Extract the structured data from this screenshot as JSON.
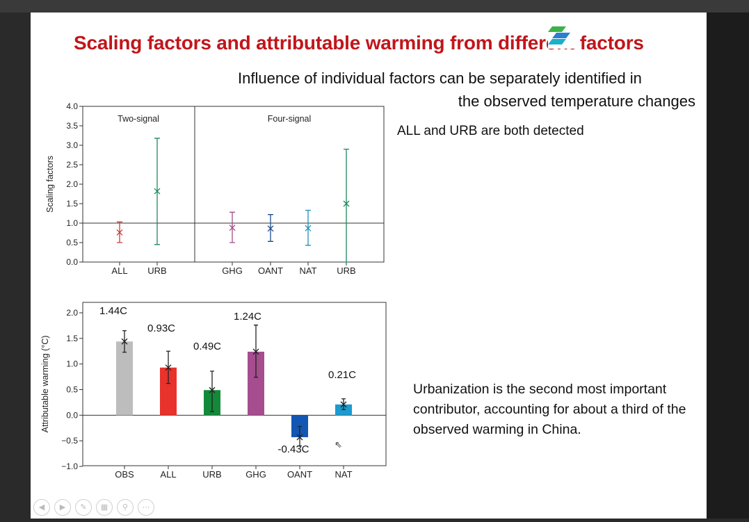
{
  "slide": {
    "title": "Scaling factors and attributable warming from different factors",
    "subtitle_line1": "Influence of individual factors can be separately identified in",
    "subtitle_line2": "the observed temperature changes",
    "note": "ALL and URB are both detected",
    "paragraph": "Urbanization is the second most important contributor, accounting for about a third of the observed warming in China."
  },
  "colors": {
    "ALL": "#d03a35",
    "URB": "#1c8a5a",
    "GHG": "#a14d86",
    "OANT": "#1f4d8c",
    "NAT": "#1f90b4",
    "OBS_bar": "#bdbdbd",
    "ALL_bar": "#e8322b",
    "URB_bar": "#138a3a",
    "GHG_bar": "#a64d8f",
    "OANT_bar": "#1356b3",
    "NAT_bar": "#1b9bcf",
    "title": "#c0161b"
  },
  "chart_data": [
    {
      "type": "scatter",
      "title": "",
      "ylabel": "Scaling factors",
      "ylim": [
        0.0,
        4.0
      ],
      "yticks": [
        "0.0",
        "0.5",
        "1.0",
        "1.5",
        "2.0",
        "2.5",
        "3.0",
        "3.5",
        "4.0"
      ],
      "reference_line": 1.0,
      "panels": [
        {
          "label": "Two-signal",
          "categories": [
            "ALL",
            "URB"
          ],
          "best": [
            0.76,
            1.82
          ],
          "low": [
            0.5,
            0.45
          ],
          "high": [
            1.03,
            3.18
          ]
        },
        {
          "label": "Four-signal",
          "categories": [
            "GHG",
            "OANT",
            "NAT",
            "URB"
          ],
          "best": [
            0.88,
            0.86,
            0.87,
            1.5
          ],
          "low": [
            0.5,
            0.53,
            0.43,
            0.0
          ],
          "high": [
            1.28,
            1.22,
            1.33,
            2.9
          ]
        }
      ]
    },
    {
      "type": "bar",
      "ylabel": "Attributable warming (°C)",
      "ylim": [
        -1.0,
        2.0
      ],
      "yticks": [
        "−1.0",
        "−0.5",
        "0.0",
        "0.5",
        "1.0",
        "1.5",
        "2.0"
      ],
      "categories": [
        "OBS",
        "ALL",
        "URB",
        "GHG",
        "OANT",
        "NAT"
      ],
      "values": [
        1.44,
        0.93,
        0.49,
        1.24,
        -0.43,
        0.21
      ],
      "error_low": [
        1.23,
        0.62,
        0.07,
        0.74,
        -0.6,
        0.11
      ],
      "error_high": [
        1.65,
        1.25,
        0.86,
        1.76,
        -0.22,
        0.32
      ],
      "data_labels": [
        "1.44C",
        "0.93C",
        "0.49C",
        "1.24C",
        "-0.43C",
        "0.21C"
      ]
    }
  ]
}
